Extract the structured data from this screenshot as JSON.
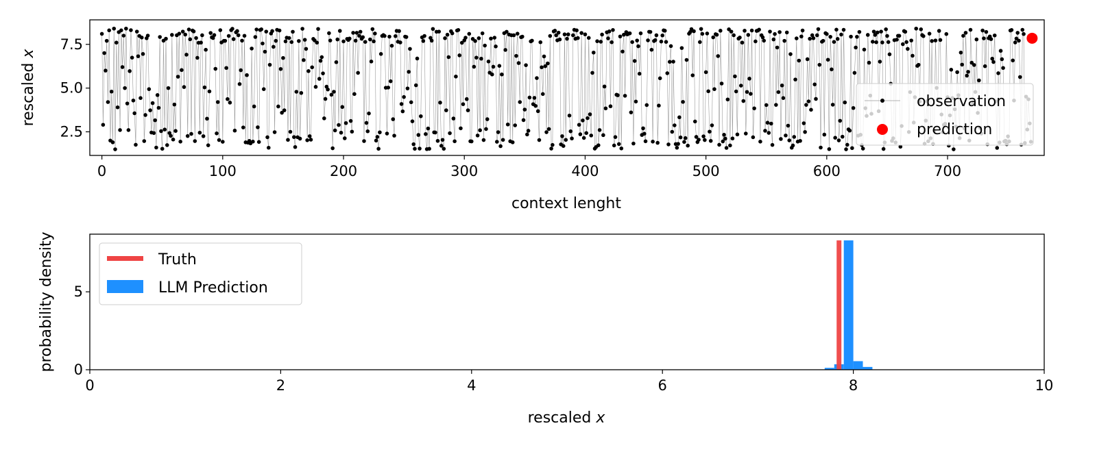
{
  "chart_data": [
    {
      "type": "line",
      "xlabel": "context lenght",
      "ylabel": "rescaled",
      "ylabel_var": "x",
      "xlim": [
        -10,
        780
      ],
      "ylim": [
        1.15,
        8.9
      ],
      "xticks": [
        0,
        100,
        200,
        300,
        400,
        500,
        600,
        700
      ],
      "yticks": [
        2.5,
        5.0,
        7.5
      ],
      "ytick_labels": [
        "2.5",
        "5.0",
        "7.5"
      ],
      "legend_position": "lower-right",
      "series": [
        {
          "name": "observation",
          "color": "#000000",
          "style": "thin gray line with black dot markers",
          "n_points": 770,
          "x_range": [
            0,
            769
          ],
          "y_range": [
            1.5,
            8.4
          ],
          "x_sample": [
            0,
            1,
            2,
            3,
            4,
            5,
            6,
            7,
            8,
            9,
            10,
            11,
            12,
            13,
            14,
            15,
            16,
            17,
            18,
            19,
            20
          ],
          "y_sample": [
            8.1,
            2.9,
            7.0,
            6.0,
            7.7,
            4.2,
            8.3,
            2.0,
            4.8,
            1.9,
            8.4,
            1.5,
            7.6,
            3.9,
            8.2,
            2.6,
            8.3,
            6.2,
            8.0,
            5.0,
            8.4
          ]
        },
        {
          "name": "prediction",
          "color": "#ff0000",
          "style": "red circle marker",
          "points": [
            {
              "x": 770,
              "y": 7.85
            }
          ]
        }
      ]
    },
    {
      "type": "histogram",
      "xlabel": "rescaled",
      "xlabel_var": "x",
      "ylabel": "probability density",
      "xlim": [
        0,
        10
      ],
      "ylim": [
        0,
        8.7
      ],
      "xticks": [
        0,
        2,
        4,
        6,
        8,
        10
      ],
      "yticks": [
        0,
        5
      ],
      "legend_position": "upper-left",
      "series": [
        {
          "name": "Truth",
          "color": "#ef4444",
          "style": "vertical bar",
          "x": 7.85,
          "width": 0.05,
          "height": 8.3
        },
        {
          "name": "LLM Prediction",
          "color": "#1e90ff",
          "style": "histogram",
          "bins": [
            {
              "x0": 7.7,
              "x1": 7.8,
              "density": 0.12
            },
            {
              "x0": 7.8,
              "x1": 7.9,
              "density": 0.35
            },
            {
              "x0": 7.9,
              "x1": 8.0,
              "density": 8.3
            },
            {
              "x0": 8.0,
              "x1": 8.1,
              "density": 0.55
            },
            {
              "x0": 8.1,
              "x1": 8.2,
              "density": 0.18
            }
          ]
        }
      ]
    }
  ]
}
